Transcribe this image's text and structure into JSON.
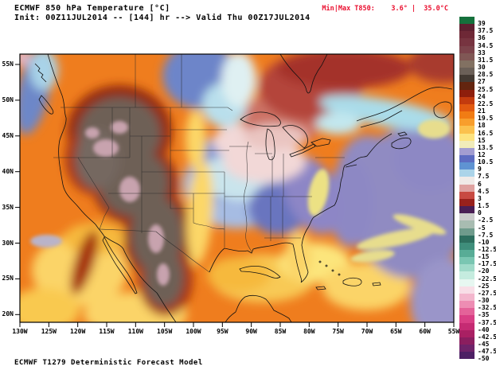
{
  "header": {
    "title": "ECMWF 850 hPa Temperature [°C]",
    "subtitle": "Init: 00Z11JUL2014 -- [144] hr --> Valid Thu 00Z17JUL2014",
    "minmax_text": "Min|Max T850:    3.6° |  35.0°C",
    "minmax_color": "#ea0f2f"
  },
  "footer": {
    "model": "ECMWF T1279 Deterministic Forecast Model"
  },
  "map": {
    "lat_labels": [
      "55N",
      "50N",
      "45N",
      "40N",
      "35N",
      "30N",
      "25N",
      "20N"
    ],
    "lon_labels": [
      "130W",
      "125W",
      "120W",
      "115W",
      "110W",
      "105W",
      "100W",
      "95W",
      "90W",
      "85W",
      "80W",
      "75W",
      "70W",
      "65W",
      "60W",
      "55W"
    ]
  },
  "colorbar": {
    "unit": "°C",
    "cells": [
      {
        "label": "39",
        "color": "#15713c"
      },
      {
        "label": "37.5",
        "color": "#5e2030"
      },
      {
        "label": "36",
        "color": "#6e2836"
      },
      {
        "label": "34.5",
        "color": "#773440"
      },
      {
        "label": "33",
        "color": "#7c434b"
      },
      {
        "label": "31.5",
        "color": "#805755"
      },
      {
        "label": "30",
        "color": "#827162"
      },
      {
        "label": "28.5",
        "color": "#6b6058"
      },
      {
        "label": "27",
        "color": "#433a33"
      },
      {
        "label": "25.5",
        "color": "#63250f"
      },
      {
        "label": "24",
        "color": "#8e1e0c"
      },
      {
        "label": "22.5",
        "color": "#c33b0e"
      },
      {
        "label": "21",
        "color": "#e25a10"
      },
      {
        "label": "19.5",
        "color": "#f17c14"
      },
      {
        "label": "18",
        "color": "#f89e2c"
      },
      {
        "label": "16.5",
        "color": "#fbc14e"
      },
      {
        "label": "15",
        "color": "#fde37f"
      },
      {
        "label": "13.5",
        "color": "#f1ecba"
      },
      {
        "label": "12",
        "color": "#a29dd1"
      },
      {
        "label": "10.5",
        "color": "#5d6cc1"
      },
      {
        "label": "9",
        "color": "#5f93d2"
      },
      {
        "label": "7.5",
        "color": "#abd4e9"
      },
      {
        "label": "6",
        "color": "#f0ebe8"
      },
      {
        "label": "4.5",
        "color": "#dfa2a0"
      },
      {
        "label": "3",
        "color": "#c84a42"
      },
      {
        "label": "1.5",
        "color": "#99211c"
      },
      {
        "label": "0",
        "color": "#4a1f55"
      },
      {
        "label": "-2.5",
        "color": "#cbcbcb"
      },
      {
        "label": "-5",
        "color": "#a8bcb1"
      },
      {
        "label": "-7.5",
        "color": "#6f9b8c"
      },
      {
        "label": "-10",
        "color": "#2e6f5f"
      },
      {
        "label": "-12.5",
        "color": "#3f8e7b"
      },
      {
        "label": "-15",
        "color": "#58ac96"
      },
      {
        "label": "-17.5",
        "color": "#7ac6b2"
      },
      {
        "label": "-20",
        "color": "#a0dac9"
      },
      {
        "label": "-22.5",
        "color": "#c5ecdf"
      },
      {
        "label": "-25",
        "color": "#e7f7f1"
      },
      {
        "label": "-27.5",
        "color": "#f8dee7"
      },
      {
        "label": "-30",
        "color": "#f3b6cd"
      },
      {
        "label": "-32.5",
        "color": "#ed8db3"
      },
      {
        "label": "-35",
        "color": "#e46299"
      },
      {
        "label": "-37.5",
        "color": "#d93f85"
      },
      {
        "label": "-40",
        "color": "#c52b73"
      },
      {
        "label": "-42.5",
        "color": "#a92063"
      },
      {
        "label": "-45",
        "color": "#8b1e5f"
      },
      {
        "label": "-47.5",
        "color": "#6e2369"
      },
      {
        "label": "-50",
        "color": "#4d2064"
      }
    ]
  },
  "chart_data": {
    "type": "heatmap",
    "title": "ECMWF 850 hPa Temperature [°C]",
    "init_time": "00Z11JUL2014",
    "forecast_hour": 144,
    "valid_time": "Thu 00Z17JUL2014",
    "model": "ECMWF T1279 Deterministic Forecast Model",
    "min_t850_c": 3.6,
    "max_t850_c": 35.0,
    "x_axis": {
      "label": "longitude",
      "ticks": [
        "130W",
        "125W",
        "120W",
        "115W",
        "110W",
        "105W",
        "100W",
        "95W",
        "90W",
        "85W",
        "80W",
        "75W",
        "70W",
        "65W",
        "60W",
        "55W"
      ]
    },
    "y_axis": {
      "label": "latitude",
      "ticks": [
        "55N",
        "50N",
        "45N",
        "40N",
        "35N",
        "30N",
        "25N",
        "20N"
      ]
    },
    "colorbar_levels_c": [
      39,
      37.5,
      36,
      34.5,
      33,
      31.5,
      30,
      28.5,
      27,
      25.5,
      24,
      22.5,
      21,
      19.5,
      18,
      16.5,
      15,
      13.5,
      12,
      10.5,
      9,
      7.5,
      6,
      4.5,
      3,
      1.5,
      0,
      -2.5,
      -5,
      -7.5,
      -10,
      -12.5,
      -15,
      -17.5,
      -20,
      -22.5,
      -25,
      -27.5,
      -30,
      -32.5,
      -35,
      -37.5,
      -40,
      -42.5,
      -45,
      -47.5,
      -50
    ],
    "legend_position": "right",
    "grid": false,
    "features": [
      {
        "region": "Great Basin / Rockies / Mexican Plateau",
        "t850_c": "28 to 33+ (hottest core, dark gray-brown with pink patches)"
      },
      {
        "region": "Pacific coast and eastern Pacific",
        "t850_c": "18 to 27 (orange with yellow patches)"
      },
      {
        "region": "Northern Plains / Canadian Prairies",
        "t850_c": "19 to 25 (orange)"
      },
      {
        "region": "Manitoba / NW Ontario",
        "t850_c": "9 to 12 (blue)"
      },
      {
        "region": "Central & Southeast US (KS-MO-AR-TN-MS-AL-GA)",
        "t850_c": "6 to 12 (cool pool, cyan to blue-purple)"
      },
      {
        "region": "Upper Midwest / Ohio Valley",
        "t850_c": "5 to 7 (pale pink)"
      },
      {
        "region": "Hudson Bay / Quebec / northern Great Lakes",
        "t850_c": "1.5 to 4.5 (dark red on this scale)"
      },
      {
        "region": "New England / Maritimes band",
        "t850_c": "7.5 to 9 (cyan band)"
      },
      {
        "region": "Western Atlantic",
        "t850_c": "12 to 15 (purple) with 15-18 yellow Gulf Stream streaks"
      },
      {
        "region": "Gulf of Mexico / Caribbean",
        "t850_c": "15 to 21 (yellow-orange)"
      }
    ]
  }
}
